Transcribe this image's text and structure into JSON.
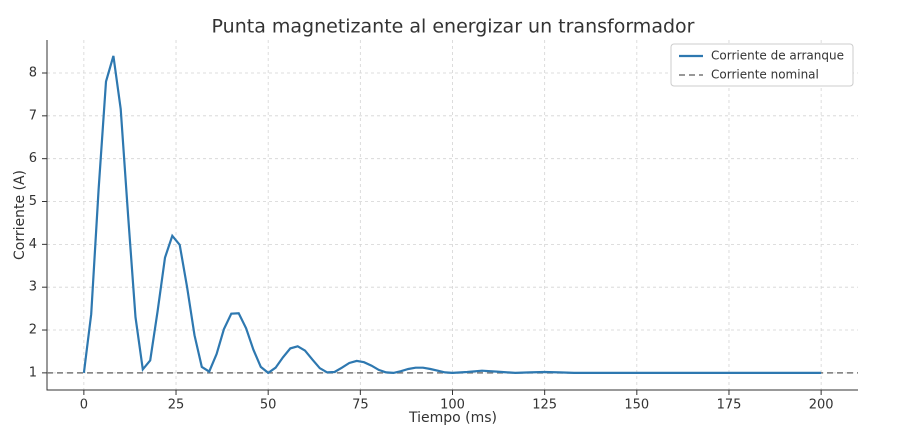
{
  "chart_data": {
    "type": "line",
    "title": "Punta magnetizante al energizar un transformador",
    "xlabel": "Tiempo (ms)",
    "ylabel": "Corriente (A)",
    "x": [
      0,
      2,
      4,
      6,
      8,
      10,
      12,
      14,
      16,
      18,
      20,
      22,
      24,
      26,
      28,
      30,
      32,
      34,
      36,
      38,
      40,
      42,
      44,
      46,
      48,
      50,
      52,
      54,
      56,
      58,
      60,
      62,
      64,
      66,
      68,
      70,
      72,
      74,
      76,
      78,
      80,
      82,
      84,
      86,
      88,
      90,
      92,
      94,
      96,
      98,
      100,
      104,
      108,
      112,
      117,
      121,
      125,
      129,
      133,
      140,
      150,
      160,
      170,
      180,
      190,
      200
    ],
    "series": [
      {
        "name": "Corriente de arranque",
        "color": "#2e78b0",
        "values": [
          1.0,
          2.37,
          5.28,
          7.8,
          8.4,
          7.16,
          4.67,
          2.3,
          1.08,
          1.29,
          2.44,
          3.69,
          4.2,
          3.99,
          3.0,
          1.88,
          1.14,
          1.03,
          1.44,
          2.02,
          2.38,
          2.39,
          2.04,
          1.54,
          1.14,
          1.0,
          1.12,
          1.36,
          1.57,
          1.62,
          1.52,
          1.31,
          1.11,
          1.01,
          1.02,
          1.12,
          1.23,
          1.28,
          1.25,
          1.17,
          1.07,
          1.01,
          1.0,
          1.04,
          1.09,
          1.12,
          1.12,
          1.09,
          1.05,
          1.01,
          1.0,
          1.02,
          1.05,
          1.03,
          1.0,
          1.01,
          1.02,
          1.01,
          1.0,
          1.0,
          1.0,
          1.0,
          1.0,
          1.0,
          1.0,
          1.0
        ]
      }
    ],
    "reference": {
      "name": "Corriente nominal",
      "value": 1,
      "color": "#777777",
      "style": "dashed"
    },
    "xlim": [
      -10,
      210
    ],
    "xticks": [
      0,
      25,
      50,
      75,
      100,
      125,
      150,
      175,
      200
    ],
    "ylim": [
      0.6,
      8.77
    ],
    "yticks": [
      1,
      2,
      3,
      4,
      5,
      6,
      7,
      8
    ],
    "grid": true,
    "legend": "upper right"
  }
}
